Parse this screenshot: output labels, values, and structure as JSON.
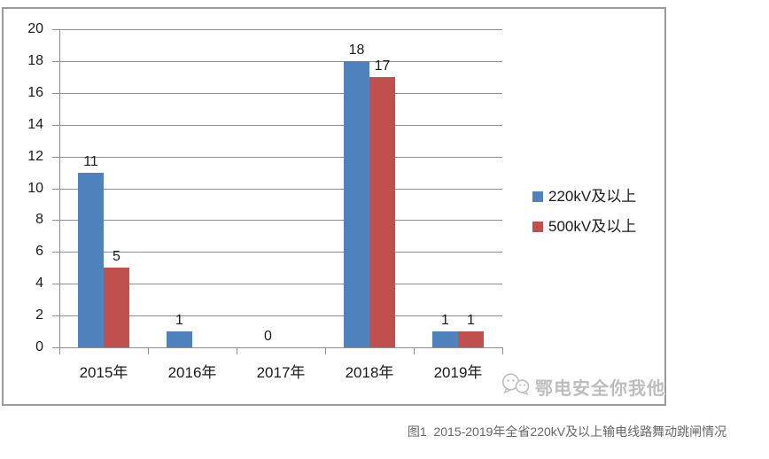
{
  "chart_data": {
    "type": "bar",
    "title": "",
    "categories": [
      "2015年",
      "2016年",
      "2017年",
      "2018年",
      "2019年"
    ],
    "series": [
      {
        "name": "220kV及以上",
        "color": "#4F81BD",
        "values": [
          11,
          1,
          0,
          18,
          1
        ],
        "data_labels": [
          "11",
          "1",
          "0",
          "18",
          "1"
        ]
      },
      {
        "name": "500kV及以上",
        "color": "#C0504D",
        "values": [
          5,
          0,
          0,
          17,
          1
        ],
        "data_labels": [
          "5",
          "",
          "",
          "17",
          "1"
        ]
      }
    ],
    "ylim": [
      0,
      20
    ],
    "ytick_step": 2,
    "ytick_labels": [
      "0",
      "2",
      "4",
      "6",
      "8",
      "10",
      "12",
      "14",
      "16",
      "18",
      "20"
    ],
    "grid": true,
    "legend_position": "right-middle",
    "axis_color": "#8e8e8e",
    "data_label_color": "#1a1a1a"
  },
  "watermark": {
    "text": "鄂电安全你我他",
    "icon": "wechat-chat-bubbles-icon"
  },
  "caption": {
    "text": "图1  2015-2019年全省220kV及以上输电线路舞动跳闸情况"
  },
  "frame": {
    "border_color": "#9b9b9b"
  }
}
